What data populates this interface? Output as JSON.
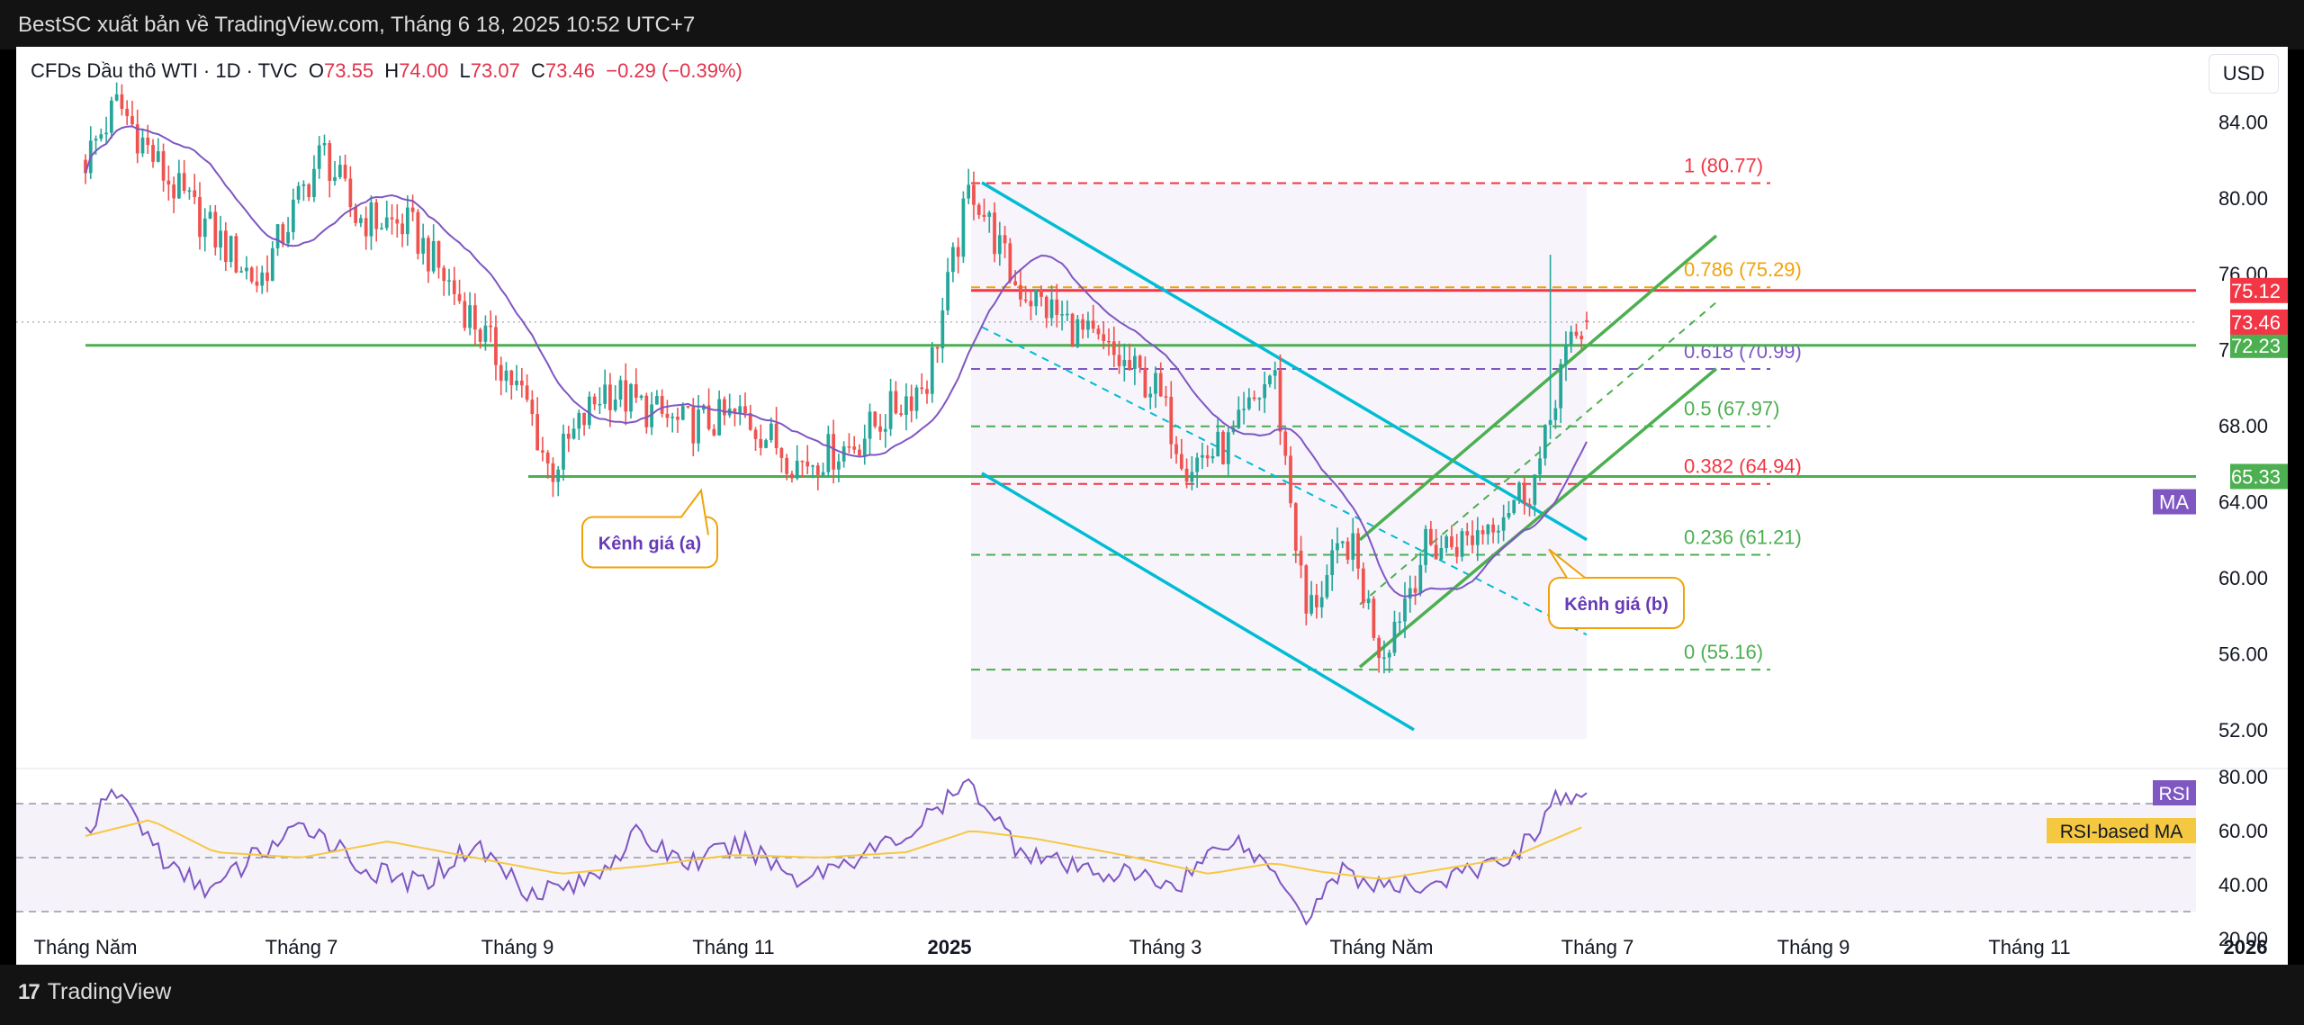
{
  "header": {
    "published": "BestSC xuất bản về TradingView.com, Tháng 6 18, 2025 10:52 UTC+7"
  },
  "legend": {
    "symbol": "CFDs Dầu thô WTI · 1D · TVC",
    "open_label": "O",
    "open": "73.55",
    "high_label": "H",
    "high": "74.00",
    "low_label": "L",
    "low": "73.07",
    "close_label": "C",
    "close": "73.46",
    "change": "−0.29 (−0.39%)"
  },
  "currency": "USD",
  "footer": {
    "brand": "TradingView",
    "logo": "17"
  },
  "colors": {
    "up": "#26a69a",
    "down": "#ef5350",
    "ma": "#7e57c2",
    "rsi": "#7e57c2",
    "rsi_ma": "#f5c842",
    "channel_a": "#00bcd4",
    "channel_b": "#4caf50",
    "support": "#4caf50",
    "resistance": "#f23645"
  },
  "chart_data": [
    {
      "type": "candlestick",
      "title": "",
      "x_axis_labels": [
        "Tháng Năm",
        "Tháng 7",
        "Tháng 9",
        "Tháng 11",
        "2025",
        "Tháng 3",
        "Tháng Năm",
        "Tháng 7",
        "Tháng 9",
        "Tháng 11",
        "2026"
      ],
      "x_axis_months": [
        0,
        2,
        4,
        6,
        8,
        10,
        12,
        14,
        16,
        18,
        20
      ],
      "y_ticks": [
        84.0,
        80.0,
        76.0,
        72.0,
        68.0,
        64.0,
        60.0,
        56.0,
        52.0
      ],
      "y_range": [
        51.0,
        87.0
      ],
      "price_path_months": [
        0,
        0.3,
        0.75,
        1.2,
        1.6,
        2.2,
        2.5,
        3.0,
        3.6,
        4.1,
        4.3,
        4.8,
        5.5,
        6.1,
        6.6,
        7.1,
        7.8,
        8.2,
        8.6,
        9.3,
        9.9,
        10.2,
        10.6,
        11.0,
        11.3,
        11.7,
        12.0,
        12.4,
        12.8,
        13.1,
        13.4,
        13.5,
        13.65,
        13.8,
        13.9
      ],
      "price_path_values": [
        82.0,
        85.0,
        81.0,
        78.0,
        75.5,
        82.5,
        79.0,
        78.5,
        73.5,
        69.0,
        65.5,
        70.0,
        68.0,
        68.5,
        66.0,
        67.0,
        70.5,
        80.77,
        75.5,
        72.5,
        70.0,
        66.0,
        67.0,
        71.0,
        58.0,
        62.0,
        56.0,
        61.5,
        62.0,
        63.5,
        65.0,
        66.5,
        71.0,
        72.5,
        73.46
      ],
      "spike_high": {
        "month": 13.55,
        "value": 77.0
      },
      "moving_average": {
        "label": "MA",
        "period": 20
      },
      "fibonacci_levels": [
        {
          "ratio": "1",
          "price": 80.77,
          "label": "1 (80.77)",
          "color": "#f23645"
        },
        {
          "ratio": "0.786",
          "price": 75.29,
          "label": "0.786 (75.29)",
          "color": "#f0a30a"
        },
        {
          "ratio": "0.618",
          "price": 70.99,
          "label": "0.618 (70.99)",
          "color": "#7e57c2"
        },
        {
          "ratio": "0.5",
          "price": 67.97,
          "label": "0.5 (67.97)",
          "color": "#4caf50"
        },
        {
          "ratio": "0.382",
          "price": 64.94,
          "label": "0.382 (64.94)",
          "color": "#f23645"
        },
        {
          "ratio": "0.236",
          "price": 61.21,
          "label": "0.236 (61.21)",
          "color": "#4caf50"
        },
        {
          "ratio": "0",
          "price": 55.16,
          "label": "0 (55.16)",
          "color": "#4caf50"
        }
      ],
      "fib_range_months": [
        8.2,
        13.9
      ],
      "horizontal_lines": [
        {
          "price": 75.12,
          "label": "75.12",
          "color": "#f23645",
          "from_month": 8.2
        },
        {
          "price": 72.23,
          "label": "72.23",
          "color": "#4caf50",
          "from_month": 0
        },
        {
          "price": 65.33,
          "label": "65.33",
          "color": "#4caf50",
          "from_month": 4.1
        }
      ],
      "last_price": {
        "price": 73.46,
        "label": "73.46"
      },
      "ma_badge": {
        "price": 64.0,
        "label": "MA"
      },
      "channel_a": {
        "label": "Kênh giá (a)",
        "upper": [
          [
            8.3,
            80.8
          ],
          [
            13.9,
            62.0
          ]
        ],
        "lower": [
          [
            8.3,
            65.5
          ],
          [
            12.3,
            52.0
          ]
        ],
        "mid": [
          [
            8.3,
            73.2
          ],
          [
            13.9,
            57.0
          ]
        ]
      },
      "channel_b": {
        "label": "Kênh giá (b)",
        "upper": [
          [
            11.8,
            62.0
          ],
          [
            15.1,
            78.0
          ]
        ],
        "lower": [
          [
            11.8,
            55.3
          ],
          [
            15.1,
            71.0
          ]
        ],
        "mid": [
          [
            11.8,
            58.6
          ],
          [
            15.1,
            74.5
          ]
        ]
      }
    },
    {
      "type": "line",
      "title": "RSI",
      "series": [
        {
          "name": "RSI",
          "color": "#7e57c2"
        },
        {
          "name": "RSI-based MA",
          "color": "#f5c842"
        }
      ],
      "y_ticks": [
        80.0,
        60.0,
        40.0,
        20.0
      ],
      "y_range": [
        17.0,
        81.0
      ],
      "bands": [
        70,
        50,
        30
      ],
      "rsi_path_months": [
        0,
        0.3,
        0.8,
        1.2,
        1.6,
        2.1,
        2.6,
        3.1,
        3.6,
        4.1,
        4.6,
        5.1,
        5.6,
        6.1,
        6.6,
        7.1,
        7.6,
        8.2,
        8.6,
        9.1,
        9.6,
        10.1,
        10.6,
        11.1,
        11.3,
        11.6,
        12.1,
        12.6,
        13.1,
        13.4,
        13.6,
        13.9
      ],
      "rsi_path_values": [
        60,
        75,
        45,
        38,
        52,
        62,
        45,
        40,
        55,
        38,
        40,
        58,
        48,
        55,
        42,
        50,
        58,
        78,
        55,
        46,
        44,
        40,
        58,
        42,
        28,
        45,
        38,
        42,
        48,
        58,
        72,
        70
      ],
      "ma_path_months": [
        0,
        0.6,
        1.2,
        2.0,
        2.8,
        3.6,
        4.4,
        5.2,
        6.0,
        6.8,
        7.6,
        8.2,
        8.8,
        9.6,
        10.4,
        11.0,
        11.4,
        12.0,
        12.6,
        13.2,
        13.9
      ],
      "ma_path_values": [
        58,
        64,
        52,
        50,
        56,
        50,
        44,
        47,
        51,
        50,
        52,
        60,
        57,
        51,
        44,
        48,
        45,
        42,
        46,
        50,
        62
      ],
      "labels": {
        "rsi": "RSI",
        "rsi_ma": "RSI-based MA"
      }
    }
  ]
}
